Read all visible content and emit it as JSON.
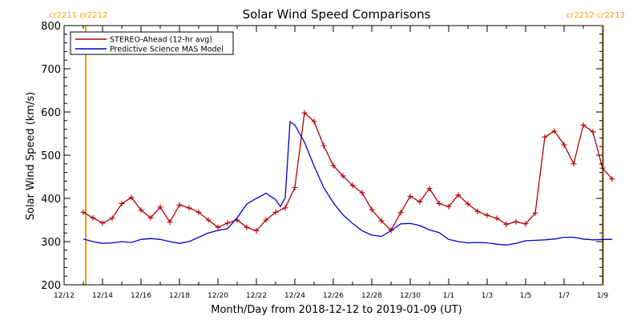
{
  "chart_data": {
    "type": "line",
    "title": "Solar Wind Speed Comparisons",
    "xlabel": "Month/Day from 2018-12-12 to 2019-01-09 (UT)",
    "ylabel": "Solar Wind Speed (km/s)",
    "x_start": "2018-12-12",
    "x_end": "2019-01-09",
    "x_unit": "date",
    "ylim": [
      200,
      800
    ],
    "yticks": [
      200,
      300,
      400,
      500,
      600,
      700,
      800
    ],
    "xticks": [
      {
        "label": "12/12",
        "x": "2018-12-12"
      },
      {
        "label": "12/14",
        "x": "2018-12-14"
      },
      {
        "label": "12/16",
        "x": "2018-12-16"
      },
      {
        "label": "12/18",
        "x": "2018-12-18"
      },
      {
        "label": "12/20",
        "x": "2018-12-20"
      },
      {
        "label": "12/22",
        "x": "2018-12-22"
      },
      {
        "label": "12/24",
        "x": "2018-12-24"
      },
      {
        "label": "12/26",
        "x": "2018-12-26"
      },
      {
        "label": "12/28",
        "x": "2018-12-28"
      },
      {
        "label": "12/30",
        "x": "2018-12-30"
      },
      {
        "label": "1/1",
        "x": "2019-01-01"
      },
      {
        "label": "1/3",
        "x": "2019-01-03"
      },
      {
        "label": "1/5",
        "x": "2019-01-05"
      },
      {
        "label": "1/7",
        "x": "2019-01-07"
      },
      {
        "label": "1/9",
        "x": "2019-01-09"
      }
    ],
    "legend": {
      "placement": "top-left"
    },
    "rotation_markers": [
      {
        "x": "2018-12-13 03:00",
        "label": "cr2211 cr2212",
        "color": "#ff9900",
        "label_side": "left"
      },
      {
        "x": "2019-01-09 01:00",
        "label": "cr2212 cr2213",
        "color": "#ff9900",
        "label_side": "right"
      }
    ],
    "series": [
      {
        "name": "STEREO-Ahead (12-hr avg)",
        "color": "#b30000",
        "markers": true,
        "points": [
          [
            "2018-12-13 00:00",
            368
          ],
          [
            "2018-12-13 12:00",
            355
          ],
          [
            "2018-12-14 00:00",
            343
          ],
          [
            "2018-12-14 12:00",
            354
          ],
          [
            "2018-12-15 00:00",
            388
          ],
          [
            "2018-12-15 12:00",
            402
          ],
          [
            "2018-12-16 00:00",
            373
          ],
          [
            "2018-12-16 12:00",
            355
          ],
          [
            "2018-12-17 00:00",
            380
          ],
          [
            "2018-12-17 12:00",
            345
          ],
          [
            "2018-12-18 00:00",
            385
          ],
          [
            "2018-12-18 12:00",
            378
          ],
          [
            "2018-12-19 00:00",
            368
          ],
          [
            "2018-12-19 12:00",
            350
          ],
          [
            "2018-12-20 00:00",
            333
          ],
          [
            "2018-12-20 12:00",
            343
          ],
          [
            "2018-12-21 00:00",
            350
          ],
          [
            "2018-12-21 12:00",
            333
          ],
          [
            "2018-12-22 00:00",
            325
          ],
          [
            "2018-12-22 12:00",
            350
          ],
          [
            "2018-12-23 00:00",
            368
          ],
          [
            "2018-12-23 12:00",
            378
          ],
          [
            "2018-12-24 00:00",
            425
          ],
          [
            "2018-12-24 12:00",
            598
          ],
          [
            "2018-12-25 00:00",
            578
          ],
          [
            "2018-12-25 12:00",
            522
          ],
          [
            "2018-12-26 00:00",
            476
          ],
          [
            "2018-12-26 12:00",
            452
          ],
          [
            "2018-12-27 00:00",
            430
          ],
          [
            "2018-12-27 12:00",
            413
          ],
          [
            "2018-12-28 00:00",
            374
          ],
          [
            "2018-12-28 12:00",
            348
          ],
          [
            "2018-12-29 00:00",
            326
          ],
          [
            "2018-12-29 12:00",
            367
          ],
          [
            "2018-12-30 00:00",
            405
          ],
          [
            "2018-12-30 12:00",
            392
          ],
          [
            "2018-12-31 00:00",
            423
          ],
          [
            "2018-12-31 12:00",
            388
          ],
          [
            "2019-01-01 00:00",
            381
          ],
          [
            "2019-01-01 12:00",
            408
          ],
          [
            "2019-01-02 00:00",
            387
          ],
          [
            "2019-01-02 12:00",
            370
          ],
          [
            "2019-01-03 00:00",
            361
          ],
          [
            "2019-01-03 12:00",
            354
          ],
          [
            "2019-01-04 00:00",
            340
          ],
          [
            "2019-01-04 12:00",
            346
          ],
          [
            "2019-01-05 00:00",
            341
          ],
          [
            "2019-01-05 12:00",
            366
          ],
          [
            "2019-01-06 00:00",
            542
          ],
          [
            "2019-01-06 12:00",
            556
          ],
          [
            "2019-01-07 00:00",
            524
          ],
          [
            "2019-01-07 12:00",
            480
          ],
          [
            "2019-01-08 00:00",
            570
          ],
          [
            "2019-01-08 12:00",
            554
          ],
          [
            "2019-01-09 00:00",
            470
          ],
          [
            "2019-01-09 12:00",
            445
          ]
        ]
      },
      {
        "name": "Predictive Science MAS Model",
        "color": "#0000cc",
        "markers": false,
        "points": [
          [
            "2018-12-13 00:00",
            306
          ],
          [
            "2018-12-13 12:00",
            300
          ],
          [
            "2018-12-14 00:00",
            296
          ],
          [
            "2018-12-14 12:00",
            297
          ],
          [
            "2018-12-15 00:00",
            300
          ],
          [
            "2018-12-15 12:00",
            298
          ],
          [
            "2018-12-16 00:00",
            305
          ],
          [
            "2018-12-16 12:00",
            307
          ],
          [
            "2018-12-17 00:00",
            305
          ],
          [
            "2018-12-17 12:00",
            300
          ],
          [
            "2018-12-18 00:00",
            296
          ],
          [
            "2018-12-18 12:00",
            300
          ],
          [
            "2018-12-19 00:00",
            310
          ],
          [
            "2018-12-19 12:00",
            320
          ],
          [
            "2018-12-20 00:00",
            326
          ],
          [
            "2018-12-20 12:00",
            330
          ],
          [
            "2018-12-21 00:00",
            355
          ],
          [
            "2018-12-21 12:00",
            387
          ],
          [
            "2018-12-22 00:00",
            400
          ],
          [
            "2018-12-22 12:00",
            412
          ],
          [
            "2018-12-23 00:00",
            397
          ],
          [
            "2018-12-23 06:00",
            381
          ],
          [
            "2018-12-23 12:00",
            402
          ],
          [
            "2018-12-23 18:00",
            578
          ],
          [
            "2018-12-24 00:00",
            570
          ],
          [
            "2018-12-24 12:00",
            530
          ],
          [
            "2018-12-25 00:00",
            475
          ],
          [
            "2018-12-25 12:00",
            425
          ],
          [
            "2018-12-26 00:00",
            390
          ],
          [
            "2018-12-26 12:00",
            362
          ],
          [
            "2018-12-27 00:00",
            342
          ],
          [
            "2018-12-27 12:00",
            325
          ],
          [
            "2018-12-28 00:00",
            315
          ],
          [
            "2018-12-28 12:00",
            312
          ],
          [
            "2018-12-29 00:00",
            325
          ],
          [
            "2018-12-29 12:00",
            341
          ],
          [
            "2018-12-30 00:00",
            342
          ],
          [
            "2018-12-30 12:00",
            337
          ],
          [
            "2018-12-31 00:00",
            327
          ],
          [
            "2018-12-31 12:00",
            321
          ],
          [
            "2019-01-01 00:00",
            305
          ],
          [
            "2019-01-01 12:00",
            300
          ],
          [
            "2019-01-02 00:00",
            297
          ],
          [
            "2019-01-02 12:00",
            298
          ],
          [
            "2019-01-03 00:00",
            297
          ],
          [
            "2019-01-03 12:00",
            294
          ],
          [
            "2019-01-04 00:00",
            292
          ],
          [
            "2019-01-04 12:00",
            296
          ],
          [
            "2019-01-05 00:00",
            302
          ],
          [
            "2019-01-05 12:00",
            303
          ],
          [
            "2019-01-06 00:00",
            304
          ],
          [
            "2019-01-06 12:00",
            306
          ],
          [
            "2019-01-07 00:00",
            310
          ],
          [
            "2019-01-07 12:00",
            310
          ],
          [
            "2019-01-08 00:00",
            306
          ],
          [
            "2019-01-08 12:00",
            304
          ],
          [
            "2019-01-09 00:00",
            305
          ],
          [
            "2019-01-09 12:00",
            305
          ]
        ]
      }
    ]
  }
}
